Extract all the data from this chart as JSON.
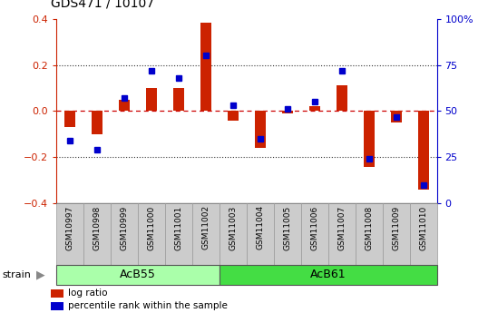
{
  "title": "GDS471 / 10107",
  "samples": [
    "GSM10997",
    "GSM10998",
    "GSM10999",
    "GSM11000",
    "GSM11001",
    "GSM11002",
    "GSM11003",
    "GSM11004",
    "GSM11005",
    "GSM11006",
    "GSM11007",
    "GSM11008",
    "GSM11009",
    "GSM11010"
  ],
  "log_ratio": [
    -0.07,
    -0.1,
    0.05,
    0.1,
    0.1,
    0.385,
    -0.04,
    -0.16,
    -0.01,
    0.02,
    0.11,
    -0.24,
    -0.05,
    -0.34
  ],
  "percentile": [
    34,
    29,
    57,
    72,
    68,
    80,
    53,
    35,
    51,
    55,
    72,
    24,
    47,
    10
  ],
  "groups": [
    {
      "label": "AcB55",
      "start": 0,
      "end": 6,
      "color": "#aaffaa"
    },
    {
      "label": "AcB61",
      "start": 6,
      "end": 14,
      "color": "#44dd44"
    }
  ],
  "bar_color_red": "#CC2200",
  "bar_color_blue": "#0000CC",
  "ylim_left": [
    -0.4,
    0.4
  ],
  "ylim_right": [
    0,
    100
  ],
  "yticks_left": [
    -0.4,
    -0.2,
    0.0,
    0.2,
    0.4
  ],
  "yticks_right": [
    0,
    25,
    50,
    75,
    100
  ],
  "ytick_labels_right": [
    "0",
    "25",
    "50",
    "75",
    "100%"
  ],
  "hlines_dotted": [
    0.2,
    -0.2
  ],
  "background_color": "#ffffff",
  "plot_bg_color": "#ffffff",
  "zero_line_color": "#CC0000",
  "dotted_line_color": "#333333",
  "strain_label": "strain",
  "legend_log_ratio": "log ratio",
  "legend_percentile": "percentile rank within the sample",
  "bar_width": 0.4,
  "label_cell_color": "#cccccc",
  "label_cell_edge": "#999999"
}
